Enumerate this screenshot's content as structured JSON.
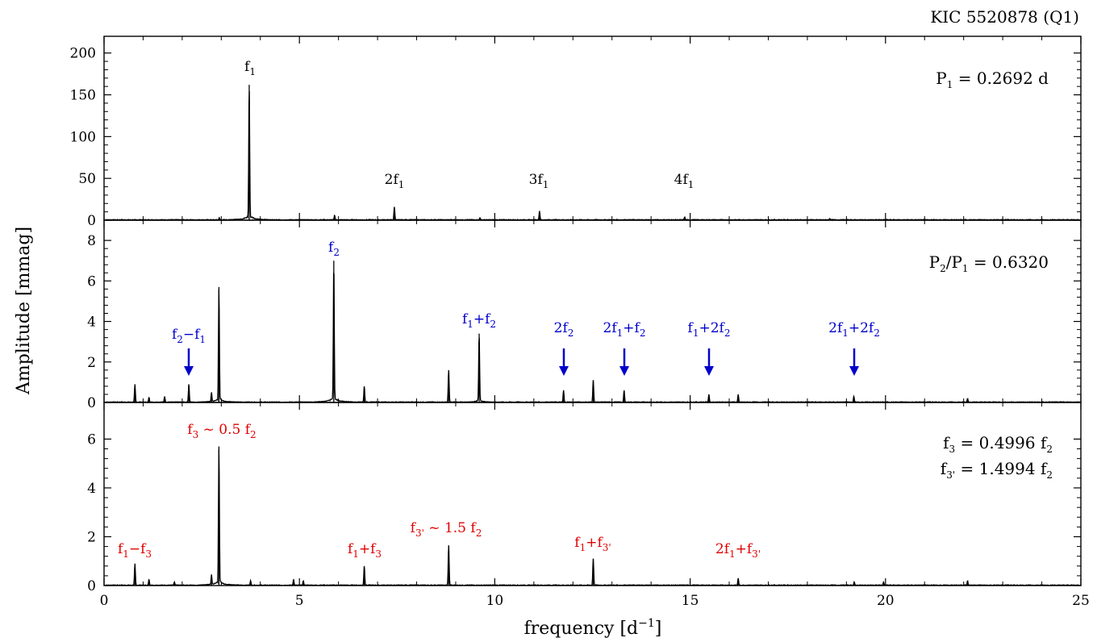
{
  "figure_title": "KIC 5520878 (Q1)",
  "x_axis": {
    "title": "frequency [d",
    "title_superscript": "−1",
    "title_close": "]"
  },
  "y_axis": {
    "title": "Amplitude [mmag]"
  },
  "colors": {
    "black": "#000000",
    "blue": "#0000cc",
    "red": "#e00000"
  },
  "chart_data": [
    {
      "type": "line",
      "panel": "top",
      "xlim": [
        0,
        25
      ],
      "ylim": [
        0,
        220
      ],
      "x_ticks": [
        0,
        5,
        10,
        15,
        20,
        25
      ],
      "y_ticks": [
        0,
        50,
        100,
        150,
        200
      ],
      "y_tick_labels": [
        "0",
        "50",
        "100",
        "150",
        "200"
      ],
      "info_text": "P1 = 0.2692 d",
      "peaks": [
        {
          "label": "f1",
          "x": 3.715,
          "y": 162
        },
        {
          "label": "2f1",
          "x": 7.43,
          "y": 16
        },
        {
          "label": "3f1",
          "x": 11.145,
          "y": 11
        },
        {
          "label": "4f1",
          "x": 14.86,
          "y": 4
        }
      ],
      "minor_peaks": [
        {
          "x": 2.95,
          "y": 3
        },
        {
          "x": 5.9,
          "y": 6
        },
        {
          "x": 9.62,
          "y": 3
        },
        {
          "x": 18.57,
          "y": 2
        }
      ]
    },
    {
      "type": "line",
      "panel": "middle",
      "xlim": [
        0,
        25
      ],
      "ylim": [
        0,
        9
      ],
      "x_ticks": [
        0,
        5,
        10,
        15,
        20,
        25
      ],
      "y_ticks": [
        0,
        2,
        4,
        6,
        8
      ],
      "y_tick_labels": [
        "0",
        "2",
        "4",
        "6",
        "8"
      ],
      "info_text": "P2/P1 = 0.6320",
      "peaks": [
        {
          "label": "f2",
          "x": 5.88,
          "y": 7.0,
          "arrow": false
        },
        {
          "label": "f2−f1",
          "x": 2.17,
          "y": 0.9,
          "arrow": true
        },
        {
          "label": "f1+f2",
          "x": 9.6,
          "y": 3.4,
          "arrow": false
        },
        {
          "label": "2f2",
          "x": 11.76,
          "y": 0.6,
          "arrow": true
        },
        {
          "label": "2f1+f2",
          "x": 13.31,
          "y": 0.6,
          "arrow": true
        },
        {
          "label": "f1+2f2",
          "x": 15.48,
          "y": 0.4,
          "arrow": true
        },
        {
          "label": "2f1+2f2",
          "x": 19.19,
          "y": 0.3,
          "arrow": true
        }
      ],
      "minor_peaks": [
        {
          "x": 0.79,
          "y": 0.9
        },
        {
          "x": 1.15,
          "y": 0.25
        },
        {
          "x": 1.55,
          "y": 0.3
        },
        {
          "x": 2.94,
          "y": 5.7
        },
        {
          "x": 2.75,
          "y": 0.5
        },
        {
          "x": 6.66,
          "y": 0.8
        },
        {
          "x": 8.82,
          "y": 1.6
        },
        {
          "x": 12.52,
          "y": 1.1
        },
        {
          "x": 16.23,
          "y": 0.4
        },
        {
          "x": 22.1,
          "y": 0.2
        }
      ]
    },
    {
      "type": "line",
      "panel": "bottom",
      "xlim": [
        0,
        25
      ],
      "ylim": [
        0,
        7.5
      ],
      "x_ticks": [
        0,
        5,
        10,
        15,
        20,
        25
      ],
      "x_tick_labels": [
        "0",
        "5",
        "10",
        "15",
        "20",
        "25"
      ],
      "y_ticks": [
        0,
        2,
        4,
        6
      ],
      "y_tick_labels": [
        "0",
        "2",
        "4",
        "6"
      ],
      "info_lines": [
        "f3 = 0.4996 f2",
        "f3' = 1.4994 f2"
      ],
      "peaks": [
        {
          "label": "f3 ~ 0.5 f2",
          "x": 2.94,
          "y": 5.7
        },
        {
          "label": "f1−f3",
          "x": 0.79,
          "y": 0.9
        },
        {
          "label": "f1+f3",
          "x": 6.66,
          "y": 0.8
        },
        {
          "label": "f3' ~ 1.5 f2",
          "x": 8.82,
          "y": 1.65
        },
        {
          "label": "f1+f3'",
          "x": 12.52,
          "y": 1.1
        },
        {
          "label": "2f1+f3'",
          "x": 16.23,
          "y": 0.3
        }
      ],
      "minor_peaks": [
        {
          "x": 1.15,
          "y": 0.25
        },
        {
          "x": 1.8,
          "y": 0.15
        },
        {
          "x": 2.75,
          "y": 0.45
        },
        {
          "x": 3.75,
          "y": 0.2
        },
        {
          "x": 4.85,
          "y": 0.25
        },
        {
          "x": 5.1,
          "y": 0.2
        },
        {
          "x": 19.2,
          "y": 0.15
        },
        {
          "x": 19.95,
          "y": 0.15
        },
        {
          "x": 22.1,
          "y": 0.2
        }
      ]
    }
  ]
}
